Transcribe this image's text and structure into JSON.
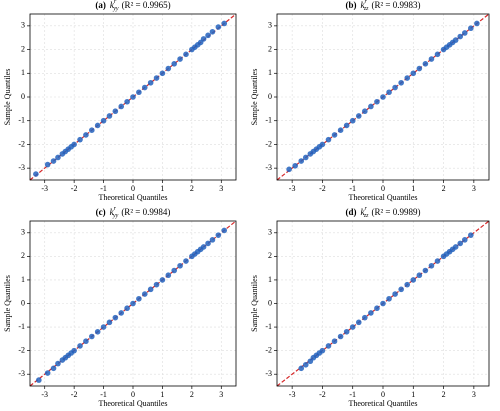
{
  "chart_data": [
    {
      "type": "scatter",
      "title": {
        "label": "(a)",
        "symbol": "k",
        "sup": "r",
        "sub": "yy",
        "stat": "(R² = 0.9965)"
      },
      "x_label": "Theoretical Quantiles",
      "y_label": "Sample Quantiles",
      "xlim": [
        -3.5,
        3.5
      ],
      "ylim": [
        -3.5,
        3.5
      ],
      "xticks": [
        -3,
        -2,
        -1,
        0,
        1,
        2,
        3
      ],
      "yticks": [
        -3,
        -2,
        -1,
        0,
        1,
        2,
        3
      ],
      "grid": true,
      "color": "#2262bd",
      "line_color": "#d62728",
      "x": [
        -3.3,
        -2.9,
        -2.7,
        -2.55,
        -2.4,
        -2.3,
        -2.2,
        -2.1,
        -2.0,
        -1.8,
        -1.6,
        -1.4,
        -1.2,
        -1.0,
        -0.8,
        -0.6,
        -0.4,
        -0.2,
        0,
        0.2,
        0.4,
        0.6,
        0.8,
        1.0,
        1.2,
        1.4,
        1.6,
        1.8,
        2.0,
        2.1,
        2.2,
        2.3,
        2.4,
        2.55,
        2.7,
        2.9,
        3.1
      ],
      "values": [
        -3.25,
        -2.85,
        -2.7,
        -2.55,
        -2.4,
        -2.3,
        -2.2,
        -2.1,
        -2.0,
        -1.8,
        -1.6,
        -1.4,
        -1.2,
        -1.0,
        -0.8,
        -0.6,
        -0.4,
        -0.2,
        0,
        0.2,
        0.4,
        0.6,
        0.8,
        1.0,
        1.2,
        1.4,
        1.6,
        1.8,
        2.0,
        2.1,
        2.2,
        2.3,
        2.45,
        2.6,
        2.75,
        2.95,
        3.1
      ]
    },
    {
      "type": "scatter",
      "title": {
        "label": "(b)",
        "symbol": "k",
        "sup": "r",
        "sub": "zz",
        "stat": "(R² = 0.9983)"
      },
      "x_label": "Theoretical Quantiles",
      "y_label": "Sample Quantiles",
      "xlim": [
        -3.5,
        3.5
      ],
      "ylim": [
        -3.5,
        3.5
      ],
      "xticks": [
        -3,
        -2,
        -1,
        0,
        1,
        2,
        3
      ],
      "yticks": [
        -3,
        -2,
        -1,
        0,
        1,
        2,
        3
      ],
      "grid": true,
      "color": "#2262bd",
      "line_color": "#d62728",
      "x": [
        -3.1,
        -2.9,
        -2.7,
        -2.55,
        -2.4,
        -2.3,
        -2.2,
        -2.1,
        -2.0,
        -1.8,
        -1.6,
        -1.4,
        -1.2,
        -1.0,
        -0.8,
        -0.6,
        -0.4,
        -0.2,
        0,
        0.2,
        0.4,
        0.6,
        0.8,
        1.0,
        1.2,
        1.4,
        1.6,
        1.8,
        2.0,
        2.1,
        2.2,
        2.3,
        2.4,
        2.55,
        2.7,
        2.9,
        3.1
      ],
      "values": [
        -3.05,
        -2.9,
        -2.7,
        -2.55,
        -2.4,
        -2.3,
        -2.2,
        -2.1,
        -2.0,
        -1.8,
        -1.6,
        -1.4,
        -1.2,
        -1.0,
        -0.8,
        -0.6,
        -0.4,
        -0.2,
        0,
        0.2,
        0.4,
        0.6,
        0.8,
        1.0,
        1.2,
        1.4,
        1.6,
        1.8,
        2.0,
        2.1,
        2.2,
        2.3,
        2.4,
        2.55,
        2.7,
        2.9,
        3.1
      ]
    },
    {
      "type": "scatter",
      "title": {
        "label": "(c)",
        "symbol": "k",
        "sup": "r",
        "sub": "yy",
        "stat": "(R² = 0.9984)"
      },
      "x_label": "Theoretical Quantiles",
      "y_label": "Sample Quantiles",
      "xlim": [
        -3.5,
        3.5
      ],
      "ylim": [
        -3.5,
        3.5
      ],
      "xticks": [
        -3,
        -2,
        -1,
        0,
        1,
        2,
        3
      ],
      "yticks": [
        -3,
        -2,
        -1,
        0,
        1,
        2,
        3
      ],
      "grid": true,
      "color": "#2262bd",
      "line_color": "#d62728",
      "x": [
        -3.2,
        -2.9,
        -2.7,
        -2.55,
        -2.4,
        -2.3,
        -2.2,
        -2.1,
        -2.0,
        -1.8,
        -1.6,
        -1.4,
        -1.2,
        -1.0,
        -0.8,
        -0.6,
        -0.4,
        -0.2,
        0,
        0.2,
        0.4,
        0.6,
        0.8,
        1.0,
        1.2,
        1.4,
        1.6,
        1.8,
        2.0,
        2.1,
        2.2,
        2.3,
        2.4,
        2.55,
        2.7,
        2.9,
        3.1
      ],
      "values": [
        -3.25,
        -2.95,
        -2.75,
        -2.55,
        -2.4,
        -2.3,
        -2.2,
        -2.1,
        -2.0,
        -1.8,
        -1.6,
        -1.4,
        -1.2,
        -1.0,
        -0.8,
        -0.6,
        -0.4,
        -0.2,
        0,
        0.2,
        0.4,
        0.6,
        0.8,
        1.0,
        1.2,
        1.4,
        1.6,
        1.8,
        2.0,
        2.1,
        2.2,
        2.3,
        2.4,
        2.55,
        2.7,
        2.9,
        3.1
      ]
    },
    {
      "type": "scatter",
      "title": {
        "label": "(d)",
        "symbol": "k",
        "sup": "r",
        "sub": "zz",
        "stat": "(R² = 0.9989)"
      },
      "x_label": "Theoretical Quantiles",
      "y_label": "Sample Quantiles",
      "xlim": [
        -3.5,
        3.5
      ],
      "ylim": [
        -3.5,
        3.5
      ],
      "xticks": [
        -3,
        -2,
        -1,
        0,
        1,
        2,
        3
      ],
      "yticks": [
        -3,
        -2,
        -1,
        0,
        1,
        2,
        3
      ],
      "grid": true,
      "color": "#2262bd",
      "line_color": "#d62728",
      "x": [
        -2.7,
        -2.55,
        -2.4,
        -2.3,
        -2.2,
        -2.1,
        -2.0,
        -1.8,
        -1.6,
        -1.4,
        -1.2,
        -1.0,
        -0.8,
        -0.6,
        -0.4,
        -0.2,
        0,
        0.2,
        0.4,
        0.6,
        0.8,
        1.0,
        1.2,
        1.4,
        1.6,
        1.8,
        2.0,
        2.1,
        2.2,
        2.3,
        2.4,
        2.55,
        2.7,
        2.9
      ],
      "values": [
        -2.75,
        -2.6,
        -2.45,
        -2.3,
        -2.2,
        -2.1,
        -2.0,
        -1.8,
        -1.6,
        -1.4,
        -1.2,
        -1.0,
        -0.8,
        -0.6,
        -0.4,
        -0.2,
        0,
        0.2,
        0.4,
        0.6,
        0.8,
        1.0,
        1.2,
        1.4,
        1.6,
        1.8,
        2.0,
        2.1,
        2.2,
        2.3,
        2.4,
        2.55,
        2.7,
        2.9
      ]
    }
  ]
}
